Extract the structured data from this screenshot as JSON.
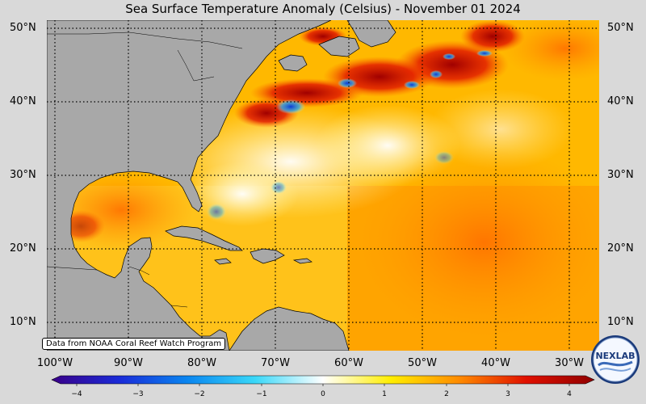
{
  "title": "Sea Surface Temperature Anomaly (Celsius) - November 01 2024",
  "credit": "Data from NOAA Coral Reef Watch Program",
  "logo_text": "NEXLAB",
  "lat_labels": [
    "50°N",
    "40°N",
    "30°N",
    "20°N",
    "10°N"
  ],
  "lon_labels": [
    "100°W",
    "90°W",
    "80°W",
    "70°W",
    "60°W",
    "50°W",
    "40°W",
    "30°W"
  ],
  "colorbar": {
    "ticks": [
      "−4",
      "−3",
      "−2",
      "−1",
      "0",
      "1",
      "2",
      "3",
      "4"
    ],
    "range": [
      -4,
      4
    ],
    "colors": [
      "#3a0088",
      "#1a2bd8",
      "#0a86f0",
      "#3ad8f8",
      "#ffffff",
      "#ffee00",
      "#ff8c00",
      "#e01000",
      "#900000"
    ]
  },
  "colors": {
    "land": "#a8a8a8",
    "background": "#d9d9d9"
  }
}
